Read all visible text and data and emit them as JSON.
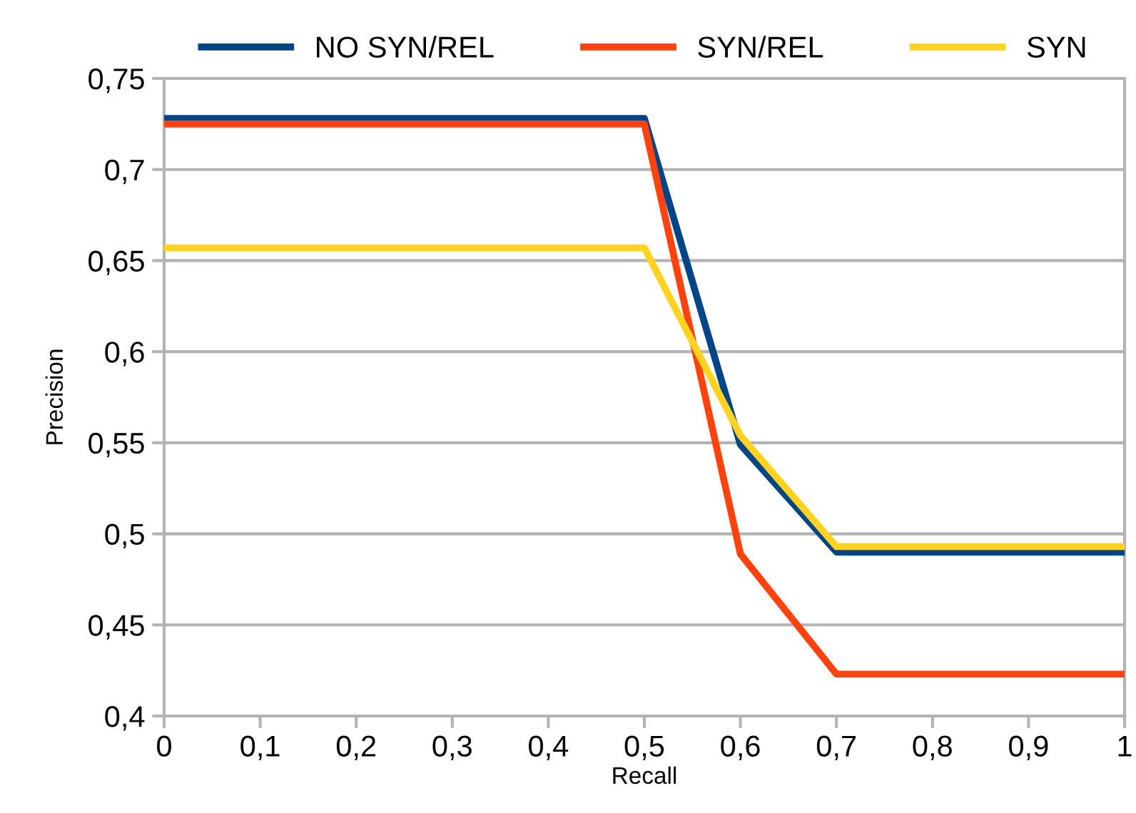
{
  "chart_data": {
    "type": "line",
    "xlabel": "Recall",
    "ylabel": "Precision",
    "x": [
      0,
      0.1,
      0.2,
      0.3,
      0.4,
      0.5,
      0.6,
      0.7,
      0.8,
      0.9,
      1
    ],
    "series": [
      {
        "name": "NO SYN/REL",
        "color": "#004586",
        "values": [
          0.728,
          0.728,
          0.728,
          0.728,
          0.728,
          0.728,
          0.549,
          0.49,
          0.49,
          0.49,
          0.49
        ]
      },
      {
        "name": "SYN/REL",
        "color": "#ff420e",
        "values": [
          0.725,
          0.725,
          0.725,
          0.725,
          0.725,
          0.725,
          0.489,
          0.423,
          0.423,
          0.423,
          0.423
        ]
      },
      {
        "name": "SYN",
        "color": "#ffd320",
        "values": [
          0.657,
          0.657,
          0.657,
          0.657,
          0.657,
          0.657,
          0.554,
          0.493,
          0.493,
          0.493,
          0.493
        ]
      }
    ],
    "xlim": [
      0,
      1
    ],
    "xticks": [
      0,
      {
        "value": 0.1,
        "label": "0,1"
      },
      {
        "value": 0.2,
        "label": "0,2"
      },
      {
        "value": 0.3,
        "label": "0,3"
      },
      {
        "value": 0.4,
        "label": "0,4"
      },
      {
        "value": 0.5,
        "label": "0,5"
      },
      {
        "value": 0.6,
        "label": "0,6"
      },
      {
        "value": 0.7,
        "label": "0,7"
      },
      {
        "value": 0.8,
        "label": "0,8"
      },
      {
        "value": 0.9,
        "label": "0,9"
      },
      1
    ],
    "ylim": [
      0.4,
      0.75
    ],
    "yticks": [
      {
        "value": 0.4,
        "label": "0,4"
      },
      {
        "value": 0.45,
        "label": "0,45"
      },
      {
        "value": 0.5,
        "label": "0,5"
      },
      {
        "value": 0.55,
        "label": "0,55"
      },
      {
        "value": 0.6,
        "label": "0,6"
      },
      {
        "value": 0.65,
        "label": "0,65"
      },
      {
        "value": 0.7,
        "label": "0,7"
      },
      {
        "value": 0.75,
        "label": "0,75"
      }
    ],
    "grid": "y",
    "legend": "top",
    "marker": "none",
    "line_style": "solid"
  }
}
